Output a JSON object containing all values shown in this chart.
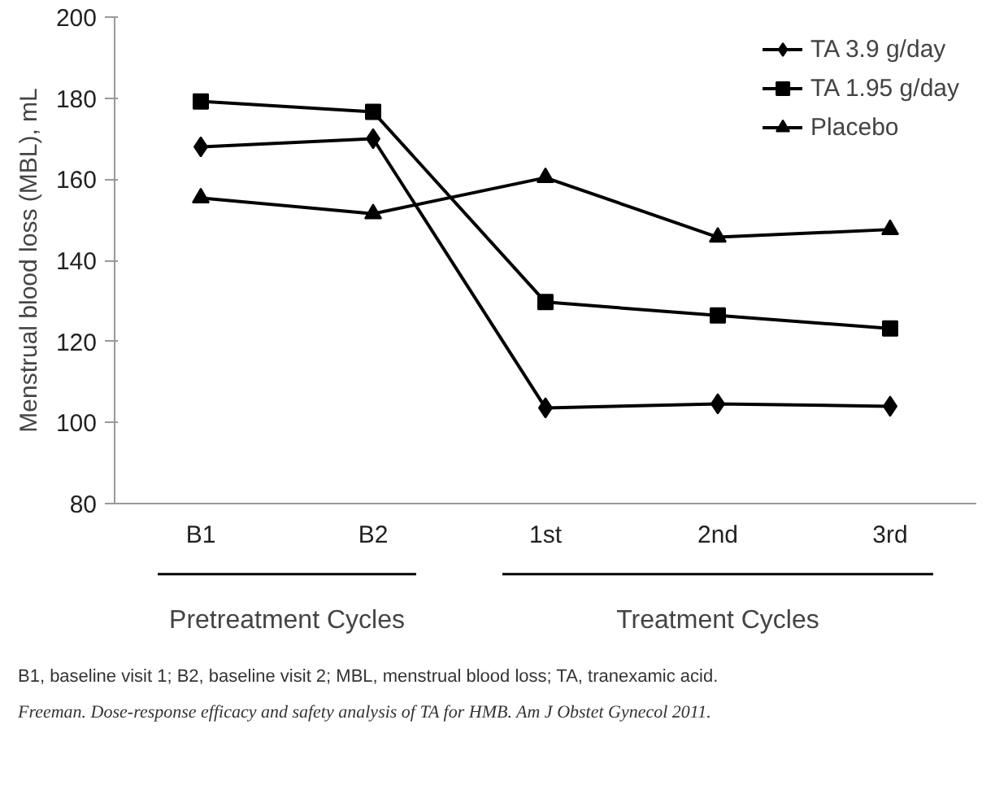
{
  "chart_data": {
    "type": "line",
    "ylabel": "Menstrual blood loss (MBL), mL",
    "categories": [
      "B1",
      "B2",
      "1st",
      "2nd",
      "3rd"
    ],
    "series": [
      {
        "name": "TA 3.9 g/day",
        "color": "#000000",
        "marker": "diamond",
        "values": [
          168,
          170,
          103.6,
          104.6,
          104
        ]
      },
      {
        "name": "TA 1.95 g/day",
        "color": "#000000",
        "marker": "square",
        "values": [
          179.2,
          176.6,
          129.7,
          126.4,
          123.2
        ]
      },
      {
        "name": "Placebo",
        "color": "#000000",
        "marker": "triangle",
        "values": [
          155.4,
          151.5,
          160.4,
          145.7,
          147.6
        ]
      }
    ],
    "ylim": [
      80,
      200
    ],
    "yticks": [
      80,
      100,
      120,
      140,
      160,
      180,
      200
    ],
    "grid": false,
    "legend": "top right",
    "annotations": [
      "Pretreatment Cycles",
      "Treatment Cycles",
      "B1, baseline visit 1; B2, baseline visit 2; MBL, menstrual blood loss; TA, tranexamic acid.",
      "Freeman. Dose-response efficacy and safety analysis of TA for HMB. Am J Obstet Gynecol 2011."
    ]
  }
}
